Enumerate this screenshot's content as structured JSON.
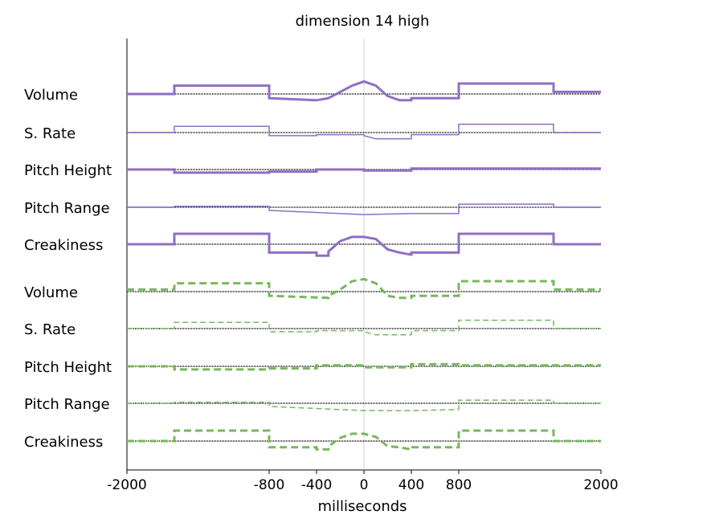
{
  "chart_data": {
    "type": "line",
    "title": "dimension 14 high",
    "xlabel": "milliseconds",
    "ylabel": "",
    "xlim": [
      -2000,
      2000
    ],
    "x_ticks": [
      -2000,
      -800,
      -400,
      0,
      400,
      800,
      2000
    ],
    "x_tick_labels": [
      "-2000",
      "-800",
      "-400",
      "0",
      "400",
      "800",
      "2000"
    ],
    "grid": false,
    "legend": "none",
    "colors": {
      "purple": "#8f6fc4",
      "green": "#77b85c",
      "baseline": "#000000",
      "zero_line": "#d0d0d0"
    },
    "groups": [
      {
        "name": "purple-group",
        "color": "#8f6fc4",
        "line_style": "solid",
        "features": [
          {
            "label": "Volume",
            "width": "thick",
            "points": [
              [
                -2000,
                0
              ],
              [
                -1600,
                0
              ],
              [
                -1600,
                0.8
              ],
              [
                -800,
                0.8
              ],
              [
                -800,
                -0.4
              ],
              [
                -400,
                -0.6
              ],
              [
                -300,
                -0.4
              ],
              [
                -200,
                0.2
              ],
              [
                -100,
                0.8
              ],
              [
                0,
                1.2
              ],
              [
                100,
                0.8
              ],
              [
                200,
                -0.2
              ],
              [
                300,
                -0.6
              ],
              [
                400,
                -0.6
              ],
              [
                400,
                -0.4
              ],
              [
                800,
                -0.4
              ],
              [
                800,
                1.0
              ],
              [
                1600,
                1.0
              ],
              [
                1600,
                0.2
              ],
              [
                2000,
                0.2
              ]
            ]
          },
          {
            "label": "S. Rate",
            "width": "thin",
            "points": [
              [
                -2000,
                0
              ],
              [
                -1600,
                0
              ],
              [
                -1600,
                0.6
              ],
              [
                -800,
                0.6
              ],
              [
                -800,
                -0.3
              ],
              [
                -400,
                -0.3
              ],
              [
                -400,
                -0.2
              ],
              [
                0,
                -0.2
              ],
              [
                0,
                -0.3
              ],
              [
                100,
                -0.6
              ],
              [
                400,
                -0.6
              ],
              [
                400,
                -0.2
              ],
              [
                800,
                -0.2
              ],
              [
                800,
                0.8
              ],
              [
                1600,
                0.8
              ],
              [
                1600,
                0
              ],
              [
                2000,
                0
              ]
            ]
          },
          {
            "label": "Pitch Height",
            "width": "thick",
            "points": [
              [
                -2000,
                0
              ],
              [
                -1600,
                0
              ],
              [
                -1600,
                -0.3
              ],
              [
                -800,
                -0.3
              ],
              [
                -800,
                -0.2
              ],
              [
                -400,
                -0.2
              ],
              [
                -400,
                0
              ],
              [
                0,
                0
              ],
              [
                0,
                -0.1
              ],
              [
                400,
                -0.1
              ],
              [
                400,
                0.1
              ],
              [
                800,
                0.1
              ],
              [
                800,
                0.1
              ],
              [
                1600,
                0.1
              ],
              [
                1600,
                0.1
              ],
              [
                2000,
                0.1
              ]
            ]
          },
          {
            "label": "Pitch Range",
            "width": "thin",
            "points": [
              [
                -2000,
                0
              ],
              [
                -1600,
                0
              ],
              [
                -1600,
                0.1
              ],
              [
                -800,
                0.1
              ],
              [
                -800,
                -0.3
              ],
              [
                -400,
                -0.5
              ],
              [
                0,
                -0.7
              ],
              [
                0,
                -0.7
              ],
              [
                400,
                -0.6
              ],
              [
                800,
                -0.6
              ],
              [
                800,
                0.3
              ],
              [
                1600,
                0.3
              ],
              [
                1600,
                0
              ],
              [
                2000,
                0
              ]
            ]
          },
          {
            "label": "Creakiness",
            "width": "thick",
            "points": [
              [
                -2000,
                0
              ],
              [
                -1600,
                0
              ],
              [
                -1600,
                1.0
              ],
              [
                -800,
                1.0
              ],
              [
                -800,
                -0.8
              ],
              [
                -400,
                -0.8
              ],
              [
                -400,
                -1.1
              ],
              [
                -300,
                -1.1
              ],
              [
                -300,
                -0.7
              ],
              [
                -200,
                0.3
              ],
              [
                -100,
                0.7
              ],
              [
                0,
                0.7
              ],
              [
                100,
                0.5
              ],
              [
                200,
                -0.5
              ],
              [
                300,
                -0.8
              ],
              [
                400,
                -1.0
              ],
              [
                400,
                -0.8
              ],
              [
                800,
                -0.8
              ],
              [
                800,
                1.0
              ],
              [
                1600,
                1.0
              ],
              [
                1600,
                0
              ],
              [
                2000,
                0
              ]
            ]
          }
        ]
      },
      {
        "name": "green-group",
        "color": "#77b85c",
        "line_style": "dashed",
        "features": [
          {
            "label": "Volume",
            "width": "thick",
            "points": [
              [
                -2000,
                0.2
              ],
              [
                -1600,
                0.2
              ],
              [
                -1600,
                0.8
              ],
              [
                -800,
                0.8
              ],
              [
                -800,
                -0.4
              ],
              [
                -300,
                -0.6
              ],
              [
                -300,
                -0.4
              ],
              [
                -200,
                0.2
              ],
              [
                -100,
                1.0
              ],
              [
                0,
                1.2
              ],
              [
                100,
                0.8
              ],
              [
                200,
                -0.4
              ],
              [
                300,
                -0.6
              ],
              [
                400,
                -0.6
              ],
              [
                400,
                -0.4
              ],
              [
                800,
                -0.4
              ],
              [
                800,
                1.0
              ],
              [
                1600,
                1.0
              ],
              [
                1600,
                0.2
              ],
              [
                2000,
                0.2
              ]
            ]
          },
          {
            "label": "S. Rate",
            "width": "thin",
            "points": [
              [
                -2000,
                0
              ],
              [
                -1600,
                0
              ],
              [
                -1600,
                0.6
              ],
              [
                -800,
                0.6
              ],
              [
                -800,
                -0.3
              ],
              [
                -400,
                -0.3
              ],
              [
                -400,
                -0.2
              ],
              [
                0,
                -0.2
              ],
              [
                0,
                -0.3
              ],
              [
                100,
                -0.6
              ],
              [
                400,
                -0.6
              ],
              [
                400,
                -0.2
              ],
              [
                800,
                -0.2
              ],
              [
                800,
                0.8
              ],
              [
                1600,
                0.8
              ],
              [
                1600,
                0
              ],
              [
                2000,
                0
              ]
            ]
          },
          {
            "label": "Pitch Height",
            "width": "thick",
            "points": [
              [
                -2000,
                0
              ],
              [
                -1600,
                0
              ],
              [
                -1600,
                -0.3
              ],
              [
                -800,
                -0.3
              ],
              [
                -800,
                -0.2
              ],
              [
                -400,
                -0.2
              ],
              [
                -400,
                0.1
              ],
              [
                0,
                0.1
              ],
              [
                0,
                -0.1
              ],
              [
                400,
                -0.1
              ],
              [
                400,
                0.2
              ],
              [
                800,
                0.2
              ],
              [
                800,
                0.1
              ],
              [
                1600,
                0.1
              ],
              [
                1600,
                0.1
              ],
              [
                2000,
                0.1
              ]
            ]
          },
          {
            "label": "Pitch Range",
            "width": "thin",
            "points": [
              [
                -2000,
                0
              ],
              [
                -1600,
                0
              ],
              [
                -1600,
                0.1
              ],
              [
                -800,
                0.1
              ],
              [
                -800,
                -0.3
              ],
              [
                -400,
                -0.5
              ],
              [
                0,
                -0.7
              ],
              [
                400,
                -0.7
              ],
              [
                800,
                -0.6
              ],
              [
                800,
                0.3
              ],
              [
                1600,
                0.3
              ],
              [
                1600,
                0
              ],
              [
                2000,
                0
              ]
            ]
          },
          {
            "label": "Creakiness",
            "width": "thick",
            "points": [
              [
                -2000,
                0
              ],
              [
                -1600,
                0
              ],
              [
                -1600,
                1.0
              ],
              [
                -800,
                1.0
              ],
              [
                -800,
                -0.6
              ],
              [
                -400,
                -0.6
              ],
              [
                -400,
                -0.8
              ],
              [
                -300,
                -0.8
              ],
              [
                -300,
                -0.5
              ],
              [
                -200,
                0.3
              ],
              [
                -100,
                0.7
              ],
              [
                0,
                0.7
              ],
              [
                100,
                0.4
              ],
              [
                200,
                -0.5
              ],
              [
                300,
                -0.6
              ],
              [
                400,
                -0.8
              ],
              [
                400,
                -0.6
              ],
              [
                800,
                -0.6
              ],
              [
                800,
                1.0
              ],
              [
                1600,
                1.0
              ],
              [
                1600,
                0
              ],
              [
                2000,
                0
              ]
            ]
          }
        ]
      }
    ]
  }
}
